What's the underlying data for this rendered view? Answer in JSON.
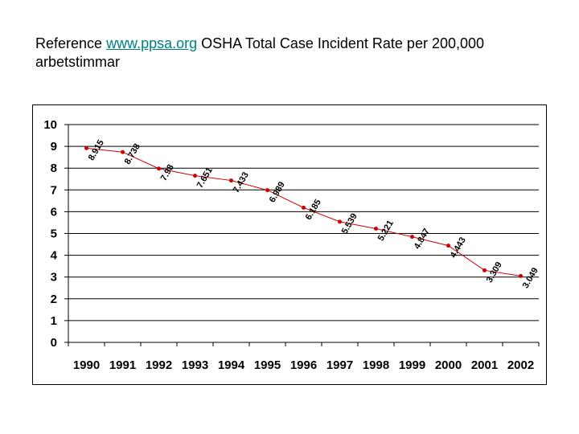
{
  "title": {
    "prefix": "Reference ",
    "link": "www.ppsa.org",
    "suffix": " OSHA Total Case Incident Rate per 200,000 arbetstimmar"
  },
  "chart_data": {
    "type": "line",
    "categories": [
      "1990",
      "1991",
      "1992",
      "1993",
      "1994",
      "1995",
      "1996",
      "1997",
      "1998",
      "1999",
      "2000",
      "2001",
      "2002"
    ],
    "series": [
      {
        "values": [
          8.915,
          8.738,
          7.98,
          7.651,
          7.433,
          6.989,
          6.185,
          5.539,
          5.221,
          4.847,
          4.443,
          3.309,
          3.049
        ],
        "labels": [
          "8.915",
          "8.738",
          "7.98",
          "7.651",
          "7.433",
          "6.989",
          "6.185",
          "5.539",
          "5.221",
          "4.847",
          "4.443",
          "3.309",
          "3.049"
        ],
        "color": "#cc0000"
      }
    ],
    "yticks": [
      "0",
      "1",
      "2",
      "3",
      "4",
      "5",
      "6",
      "7",
      "8",
      "9",
      "10"
    ],
    "ylim": [
      0,
      10
    ],
    "grid": true,
    "legend": "none",
    "title": "",
    "xlabel": "",
    "ylabel": ""
  }
}
